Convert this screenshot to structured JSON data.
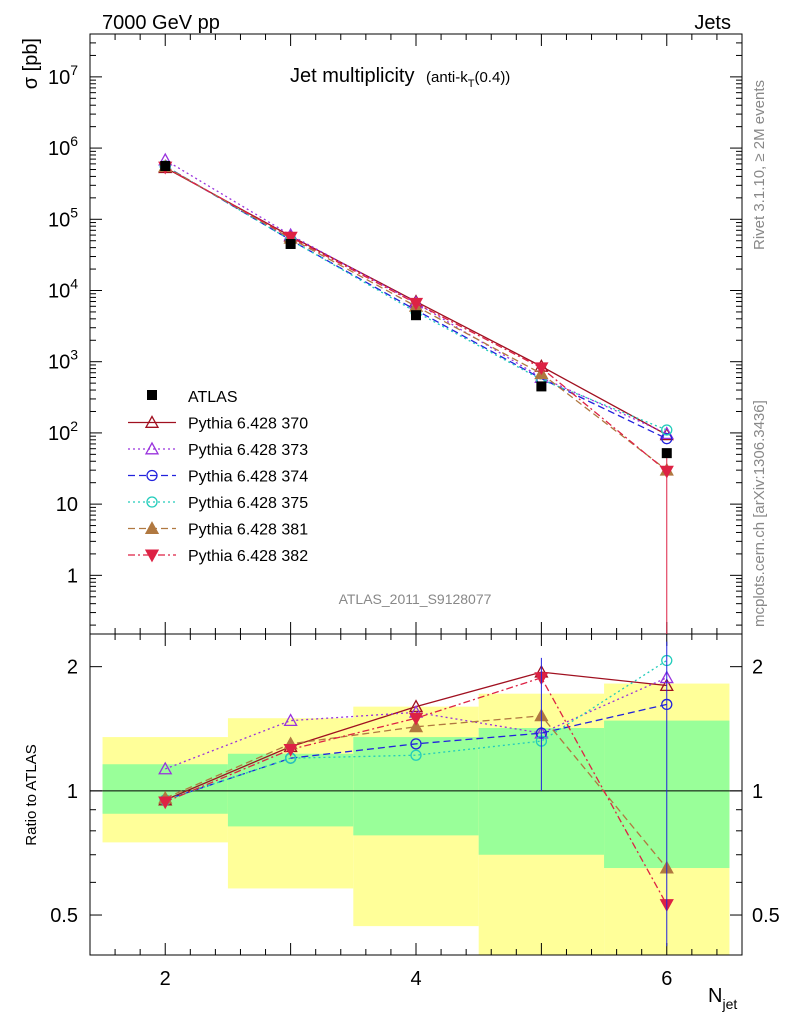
{
  "header": {
    "left": "7000 GeV pp",
    "right": "Jets"
  },
  "side_labels": {
    "top": "Rivet 3.1.10, ≥ 2M events",
    "bottom": "mcplots.cern.ch [arXiv:1306.3436]"
  },
  "chart_data": {
    "type": "scatter",
    "title": "Jet multiplicity",
    "title_sub_prefix": "(anti-k",
    "title_sub_index": "T",
    "title_sub_suffix": "(0.4))",
    "watermark": "ATLAS_2011_S9128077",
    "ylabel": "σ [pb]",
    "ratio_ylabel": "Ratio to ATLAS",
    "xlabel_main": "N",
    "xlabel_sub": "jet",
    "xlim": [
      1.4,
      6.6
    ],
    "ylim": [
      0.15,
      40000000
    ],
    "yscale": "log",
    "ratio_ylim": [
      0.4,
      2.4
    ],
    "ratio_yscale": "log",
    "x_ticks": [
      "2",
      "4",
      "6"
    ],
    "y_tick_labels": [
      "1",
      "10",
      "10^2",
      "10^3",
      "10^4",
      "10^5",
      "10^6",
      "10^7"
    ],
    "ratio_tick_labels": [
      "0.5",
      "1",
      "2"
    ],
    "x": [
      2,
      3,
      4,
      5,
      6
    ],
    "data": {
      "name": "ATLAS",
      "values": [
        560000,
        45000,
        4500,
        450,
        52
      ],
      "bands": [
        {
          "x0": 1.5,
          "x1": 2.5,
          "g_lo": 0.88,
          "g_hi": 1.16,
          "y_lo": 0.75,
          "y_hi": 1.35
        },
        {
          "x0": 2.5,
          "x1": 3.5,
          "g_lo": 0.82,
          "g_hi": 1.23,
          "y_lo": 0.58,
          "y_hi": 1.5
        },
        {
          "x0": 3.5,
          "x1": 4.5,
          "g_lo": 0.78,
          "g_hi": 1.35,
          "y_lo": 0.47,
          "y_hi": 1.6
        },
        {
          "x0": 4.5,
          "x1": 5.5,
          "g_lo": 0.7,
          "g_hi": 1.42,
          "y_lo": 0.35,
          "y_hi": 1.72
        },
        {
          "x0": 5.5,
          "x1": 6.5,
          "g_lo": 0.65,
          "g_hi": 1.48,
          "y_lo": 0.35,
          "y_hi": 1.82
        }
      ]
    },
    "series": [
      {
        "name": "Pythia 6.428 370",
        "color": "#a01020",
        "dash": "",
        "marker": "tri-up-open",
        "values": [
          530000,
          58000,
          7000,
          860,
          94
        ],
        "ratio": [
          0.95,
          1.28,
          1.6,
          1.94,
          1.8
        ]
      },
      {
        "name": "Pythia 6.428 373",
        "color": "#9933dd",
        "dash": "2,3",
        "marker": "tri-up-open",
        "values": [
          680000,
          60000,
          6700,
          600,
          98
        ],
        "ratio": [
          1.13,
          1.48,
          1.55,
          1.38,
          1.88
        ]
      },
      {
        "name": "Pythia 6.428 374",
        "color": "#2222dd",
        "dash": "7,4",
        "marker": "circle-open",
        "values": [
          560000,
          51000,
          5300,
          580,
          83
        ],
        "ratio": [
          0.95,
          1.2,
          1.3,
          1.38,
          1.62
        ]
      },
      {
        "name": "Pythia 6.428 375",
        "color": "#22ccbb",
        "dash": "2,3",
        "marker": "circle-open",
        "values": [
          560000,
          51000,
          5000,
          560,
          110
        ],
        "ratio": [
          0.95,
          1.2,
          1.22,
          1.32,
          2.07
        ]
      },
      {
        "name": "Pythia 6.428 381",
        "color": "#b07840",
        "dash": "7,4",
        "marker": "tri-up-filled",
        "values": [
          550000,
          54000,
          6000,
          680,
          30
        ],
        "ratio": [
          0.96,
          1.3,
          1.43,
          1.52,
          0.65
        ]
      },
      {
        "name": "Pythia 6.428 382",
        "color": "#dd2244",
        "dash": "7,3,2,3",
        "marker": "tri-down-filled",
        "values": [
          540000,
          56000,
          6600,
          820,
          29
        ],
        "ratio": [
          0.94,
          1.26,
          1.5,
          1.88,
          0.53
        ]
      }
    ],
    "legend_position": "left"
  }
}
